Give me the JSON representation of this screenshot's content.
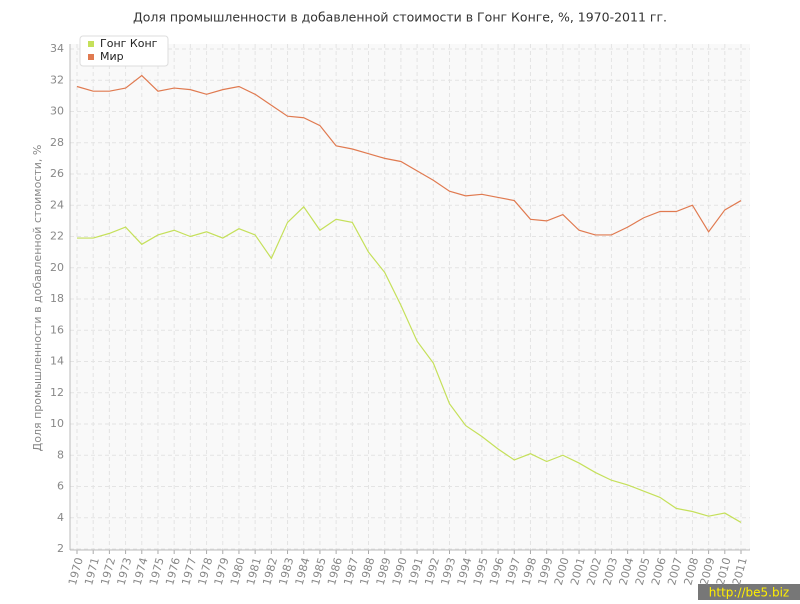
{
  "chart_data": {
    "type": "line",
    "title": "Доля промышленности в добавленной стоимости в Гонг Конге, %, 1970-2011 гг.",
    "y_label": "Доля промышленности в добавленной стоимости, %",
    "categories": [
      "1970",
      "1971",
      "1972",
      "1973",
      "1974",
      "1975",
      "1976",
      "1977",
      "1978",
      "1979",
      "1980",
      "1981",
      "1982",
      "1983",
      "1984",
      "1985",
      "1986",
      "1987",
      "1988",
      "1989",
      "1990",
      "1991",
      "1992",
      "1993",
      "1994",
      "1995",
      "1996",
      "1997",
      "1998",
      "1999",
      "2000",
      "2001",
      "2002",
      "2003",
      "2004",
      "2005",
      "2006",
      "2007",
      "2008",
      "2009",
      "2010",
      "2011"
    ],
    "series": [
      {
        "name": "Гонг Конг",
        "color": "#c5e05a",
        "values": [
          21.9,
          21.9,
          22.2,
          22.6,
          21.5,
          22.1,
          22.4,
          22.0,
          22.3,
          21.9,
          22.5,
          22.1,
          20.6,
          22.9,
          23.9,
          22.4,
          23.1,
          22.9,
          21.0,
          19.7,
          17.6,
          15.3,
          13.9,
          11.3,
          9.9,
          9.2,
          8.4,
          7.7,
          8.1,
          7.6,
          8.0,
          7.5,
          6.9,
          6.4,
          6.1,
          5.7,
          5.3,
          4.6,
          4.4,
          4.1,
          4.3,
          3.7
        ]
      },
      {
        "name": "Мир",
        "color": "#e07a50",
        "values": [
          31.6,
          31.3,
          31.3,
          31.5,
          32.3,
          31.3,
          31.5,
          31.4,
          31.1,
          31.4,
          31.6,
          31.1,
          30.4,
          29.7,
          29.6,
          29.1,
          27.8,
          27.6,
          27.3,
          27.0,
          26.8,
          26.2,
          25.6,
          24.9,
          24.6,
          24.7,
          24.5,
          24.3,
          23.1,
          23.0,
          23.4,
          22.4,
          22.1,
          22.1,
          22.6,
          23.2,
          23.6,
          23.6,
          24.0,
          22.3,
          23.7,
          24.3
        ]
      }
    ],
    "ylim": [
      2,
      34
    ],
    "yticks": [
      2,
      4,
      6,
      8,
      10,
      12,
      14,
      16,
      18,
      20,
      22,
      24,
      26,
      28,
      30,
      32,
      34
    ],
    "grid": true,
    "legend": "top-left",
    "watermark": "http://be5.biz"
  }
}
